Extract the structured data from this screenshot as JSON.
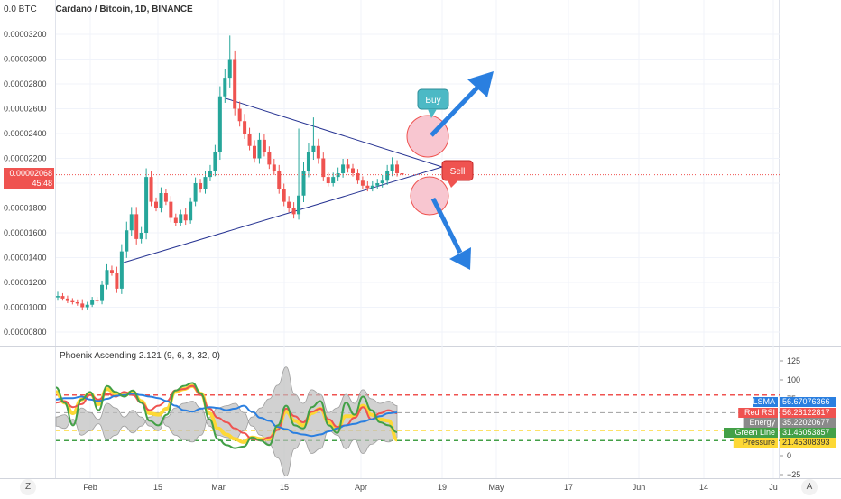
{
  "header": {
    "title": "Cardano / Bitcoin, 1D, BINANCE",
    "currency_label": "0.0 BTC"
  },
  "price_badge": {
    "value": "0.00002068",
    "countdown": "45:48",
    "color": "#ef5350"
  },
  "annotations": {
    "buy_label": "Buy",
    "sell_label": "Sell",
    "buy_color": "#4cb9c5",
    "sell_color": "#ef5350",
    "arrow_color": "#2a7fe0",
    "circle_color": "#f8c6d0"
  },
  "indicator": {
    "title": "Phoenix Ascending 2.121 (9, 6, 3, 32, 0)",
    "legend": [
      {
        "name": "LSMA",
        "value": "56.67076366",
        "color": "#2a7fe0"
      },
      {
        "name": "Red RSI",
        "value": "56.28122817",
        "color": "#ef5350"
      },
      {
        "name": "Energy",
        "value": "35.22020677",
        "color": "#8a8a8a"
      },
      {
        "name": "Green Line",
        "value": "31.46053857",
        "color": "#43a047"
      },
      {
        "name": "Pressure",
        "value": "21.45308393",
        "color": "#fdd835"
      }
    ]
  },
  "time_axis": {
    "labels": [
      "Feb",
      "15",
      "Mar",
      "15",
      "Apr",
      "19",
      "May",
      "17",
      "Jun",
      "14",
      "Ju"
    ]
  },
  "corner_buttons": {
    "left": "Z",
    "right": "A"
  },
  "chart_data": [
    {
      "type": "candlestick",
      "title": "Cardano / Bitcoin, 1D, BINANCE",
      "y_unit": "BTC",
      "ylim": [
        7e-07,
        3.4e-06
      ],
      "y_ticks": [
        "0.00000800",
        "0.00001000",
        "0.00001200",
        "0.00001400",
        "0.00001600",
        "0.00001800",
        "0.00002000",
        "0.00002200",
        "0.00002400",
        "0.00002600",
        "0.00002800",
        "0.00003000",
        "0.00003200"
      ],
      "y_tick_values": [
        8e-06,
        1e-05,
        1.2e-05,
        1.4e-05,
        1.6e-05,
        1.8e-05,
        2e-05,
        2.2e-05,
        2.4e-05,
        2.6e-05,
        2.8e-05,
        3e-05,
        3.2e-05
      ],
      "last_price": 2.068e-05,
      "closes": [
        1.09,
        1.07,
        1.05,
        1.04,
        1.03,
        1.0,
        1.02,
        1.06,
        1.05,
        1.18,
        1.3,
        1.28,
        1.15,
        1.45,
        1.62,
        1.75,
        1.55,
        1.6,
        2.05,
        1.85,
        1.8,
        1.92,
        1.85,
        1.72,
        1.68,
        1.75,
        1.7,
        1.85,
        2.0,
        1.95,
        2.05,
        2.1,
        2.25,
        2.7,
        2.85,
        3.0,
        2.6,
        2.5,
        2.4,
        2.3,
        2.2,
        2.35,
        2.25,
        2.15,
        2.1,
        1.95,
        1.85,
        1.8,
        1.75,
        1.9,
        2.1,
        2.25,
        2.3,
        2.2,
        2.05,
        2.0,
        2.05,
        2.08,
        2.15,
        2.12,
        2.08,
        2.02,
        1.98,
        1.96,
        1.98,
        2.0,
        2.02,
        2.1,
        2.15,
        2.08,
        2.07
      ],
      "trend_lines": [
        {
          "from": [
            "2019-02-07",
            1.37e-05
          ],
          "to": [
            "2019-04-12",
            2.06e-05
          ]
        },
        {
          "from": [
            "2019-03-01",
            2.7e-05
          ],
          "to": [
            "2019-04-12",
            2.06e-05
          ]
        }
      ],
      "x_labels": [
        "Feb",
        "15",
        "Mar",
        "15",
        "Apr",
        "19",
        "May",
        "17",
        "Jun",
        "14",
        "Ju"
      ]
    },
    {
      "type": "line",
      "title": "Phoenix Ascending 2.121 (9, 6, 3, 32, 0)",
      "ylim": [
        -30,
        135
      ],
      "y_ticks": [
        -25,
        0,
        25,
        50,
        75,
        100,
        125
      ],
      "hlines": [
        {
          "value": 80,
          "color": "#ef5350",
          "style": "dashed"
        },
        {
          "value": 20,
          "color": "#43a047",
          "style": "dashed"
        },
        {
          "value": 56.7,
          "color": "#9e9e9e",
          "style": "dashed"
        },
        {
          "value": 47,
          "color": "#ef9a9a",
          "style": "dashed"
        },
        {
          "value": 33,
          "color": "#fdd835",
          "style": "dashed"
        }
      ],
      "series": [
        {
          "name": "LSMA",
          "color": "#2a7fe0",
          "values": [
            74,
            76,
            76,
            78,
            74,
            72,
            75,
            79,
            80,
            82,
            80,
            78,
            76,
            72,
            66,
            60,
            58,
            62,
            64,
            63,
            60,
            62,
            66,
            58,
            50,
            46,
            38,
            35,
            30,
            28,
            26,
            28,
            32,
            36,
            40,
            42,
            45,
            48,
            52,
            56,
            57
          ]
        },
        {
          "name": "Red RSI",
          "color": "#ef5350",
          "values": [
            70,
            72,
            64,
            68,
            80,
            74,
            82,
            78,
            84,
            80,
            70,
            60,
            66,
            72,
            86,
            88,
            92,
            80,
            62,
            50,
            44,
            36,
            30,
            22,
            20,
            24,
            34,
            62,
            52,
            44,
            58,
            62,
            48,
            38,
            40,
            50,
            64,
            48,
            56,
            60,
            56
          ]
        },
        {
          "name": "Green Line",
          "color": "#43a047",
          "values": [
            90,
            70,
            40,
            74,
            84,
            60,
            92,
            84,
            78,
            86,
            70,
            46,
            40,
            54,
            86,
            92,
            96,
            82,
            48,
            22,
            14,
            10,
            12,
            24,
            20,
            14,
            40,
            66,
            40,
            36,
            64,
            72,
            40,
            30,
            70,
            54,
            78,
            60,
            44,
            40,
            31
          ]
        },
        {
          "name": "Pressure",
          "color": "#fdd835",
          "values": [
            84,
            70,
            56,
            74,
            82,
            68,
            88,
            82,
            80,
            84,
            72,
            56,
            54,
            62,
            84,
            88,
            92,
            82,
            56,
            36,
            28,
            22,
            18,
            24,
            22,
            22,
            36,
            58,
            46,
            40,
            56,
            62,
            44,
            36,
            52,
            52,
            66,
            54,
            48,
            46,
            21
          ]
        },
        {
          "name": "Energy",
          "color": "#9e9e9e",
          "values": [
            10,
            15,
            -5,
            30,
            20,
            5,
            40,
            30,
            10,
            25,
            10,
            -10,
            -20,
            10,
            30,
            40,
            45,
            30,
            -10,
            -30,
            -35,
            -40,
            -20,
            10,
            30,
            50,
            80,
            120,
            60,
            40,
            70,
            60,
            20,
            30,
            60,
            40,
            70,
            50,
            40,
            45,
            35
          ]
        }
      ],
      "x_labels": [
        "Feb",
        "15",
        "Mar",
        "15",
        "Apr",
        "19",
        "May",
        "17",
        "Jun",
        "14",
        "Ju"
      ]
    }
  ]
}
